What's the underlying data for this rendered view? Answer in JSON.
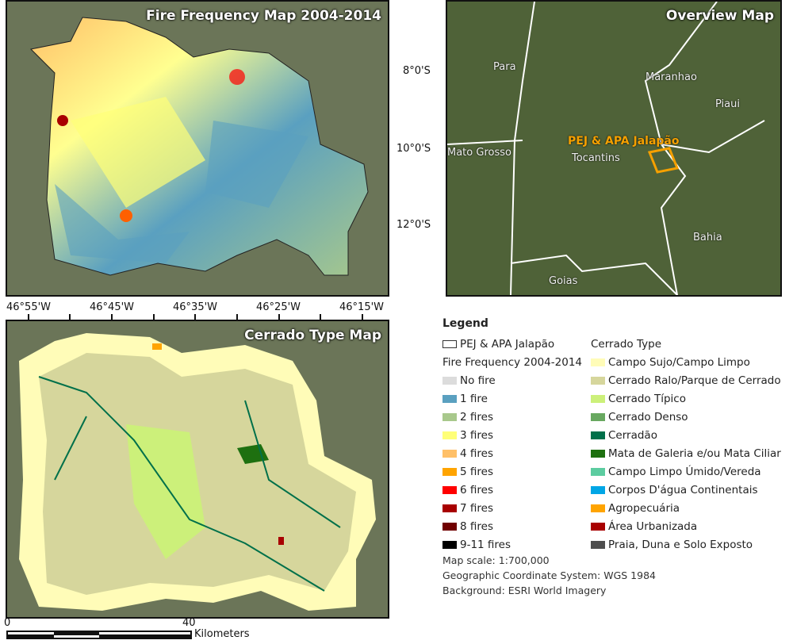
{
  "fire_map": {
    "title": "Fire Frequency Map 2004-2014"
  },
  "overview_map": {
    "title": "Overview Map",
    "latitudes": [
      "8°0'S",
      "10°0'S",
      "12°0'S"
    ],
    "places": [
      "Para",
      "Maranhao",
      "Piaui",
      "Mato Grosso",
      "Tocantins",
      "Bahia",
      "Goias"
    ],
    "study_area": "PEJ & APA Jalapão",
    "study_color": "#f5a000"
  },
  "cerrado_map": {
    "title": "Cerrado Type Map"
  },
  "longitudes": [
    "46°55'W",
    "46°45'W",
    "46°35'W",
    "46°25'W",
    "46°15'W"
  ],
  "scalebar": {
    "start": "0",
    "end": "40",
    "unit": "Kilometers"
  },
  "legend": {
    "title": "Legend",
    "boundary": "PEJ & APA Jalapão",
    "fire_title": "Fire Frequency 2004-2014",
    "fire": [
      {
        "label": "No fire",
        "color": "#dcdcdc"
      },
      {
        "label": "1 fire",
        "color": "#5aa0c0"
      },
      {
        "label": "2 fires",
        "color": "#a8c88c"
      },
      {
        "label": "3 fires",
        "color": "#ffff78"
      },
      {
        "label": "4 fires",
        "color": "#ffc068"
      },
      {
        "label": "5 fires",
        "color": "#ffa400"
      },
      {
        "label": "6 fires",
        "color": "#ff0000"
      },
      {
        "label": "7 fires",
        "color": "#a80000"
      },
      {
        "label": "8 fires",
        "color": "#700000"
      },
      {
        "label": "9-11 fires",
        "color": "#000000"
      }
    ],
    "cerrado_title": "Cerrado Type",
    "cerrado": [
      {
        "label": "Campo Sujo/Campo Limpo",
        "color": "#fffcb8"
      },
      {
        "label": "Cerrado Ralo/Parque de Cerrado",
        "color": "#d6d69c"
      },
      {
        "label": "Cerrado Típico",
        "color": "#ccf07a"
      },
      {
        "label": "Cerrado Denso",
        "color": "#68a860"
      },
      {
        "label": "Cerradão",
        "color": "#00704a"
      },
      {
        "label": "Mata de Galeria e/ou Mata Ciliar",
        "color": "#1e7010"
      },
      {
        "label": "Campo Limpo Úmido/Vereda",
        "color": "#5ccca0"
      },
      {
        "label": "Corpos D'água Continentais",
        "color": "#00a6e6"
      },
      {
        "label": "Agropecuária",
        "color": "#ffa400"
      },
      {
        "label": "Área Urbanizada",
        "color": "#a80000"
      },
      {
        "label": "Praia, Duna e Solo Exposto",
        "color": "#4e4e4e"
      }
    ]
  },
  "notes": [
    "Map scale: 1:700,000",
    "Geographic Coordinate System: WGS 1984",
    "Background: ESRI World Imagery"
  ]
}
